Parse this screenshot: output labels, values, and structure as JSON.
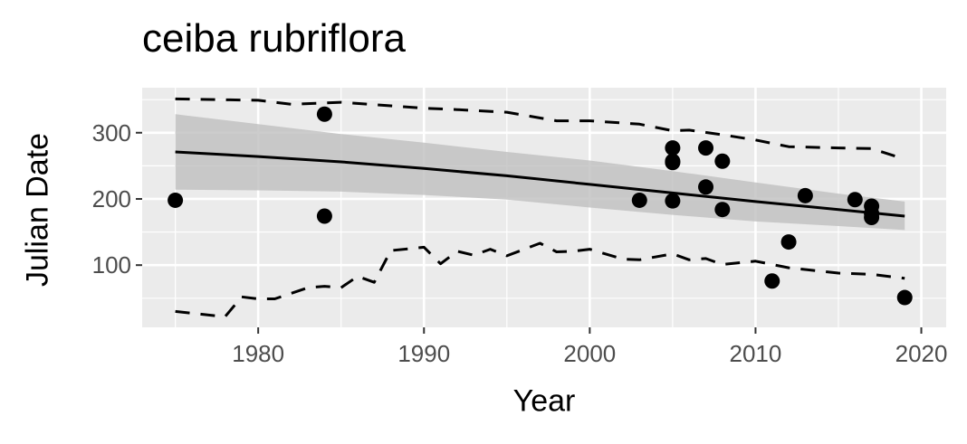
{
  "chart_data": {
    "type": "scatter",
    "title": "ceiba rubriflora",
    "xlabel": "Year",
    "ylabel": "Julian Date",
    "xlim": [
      1973,
      2021.5
    ],
    "ylim": [
      6,
      368
    ],
    "x_ticks": [
      1980,
      1990,
      2000,
      2010,
      2020
    ],
    "y_ticks": [
      100,
      200,
      300
    ],
    "grid": true,
    "legend": "none",
    "colors": {
      "panel": "#ebebeb",
      "grid_major": "#ffffff",
      "points": "#000000",
      "ribbon": "#bfbfbf"
    },
    "points": [
      {
        "x": 1975,
        "y": 198
      },
      {
        "x": 1984,
        "y": 328
      },
      {
        "x": 1984,
        "y": 174
      },
      {
        "x": 2003,
        "y": 198
      },
      {
        "x": 2005,
        "y": 277
      },
      {
        "x": 2005,
        "y": 257
      },
      {
        "x": 2005,
        "y": 255
      },
      {
        "x": 2005,
        "y": 197
      },
      {
        "x": 2007,
        "y": 277
      },
      {
        "x": 2007,
        "y": 218
      },
      {
        "x": 2008,
        "y": 257
      },
      {
        "x": 2008,
        "y": 184
      },
      {
        "x": 2011,
        "y": 76
      },
      {
        "x": 2012,
        "y": 135
      },
      {
        "x": 2013,
        "y": 205
      },
      {
        "x": 2016,
        "y": 199
      },
      {
        "x": 2017,
        "y": 189
      },
      {
        "x": 2017,
        "y": 178
      },
      {
        "x": 2017,
        "y": 172
      },
      {
        "x": 2019,
        "y": 51
      }
    ],
    "fit_line": {
      "x": [
        1975,
        1980,
        1985,
        1990,
        1995,
        2000,
        2005,
        2010,
        2015,
        2019
      ],
      "y": [
        271,
        264,
        256,
        246,
        235,
        222,
        209,
        196,
        184,
        174
      ]
    },
    "confidence_band": {
      "x": [
        1975,
        1980,
        1985,
        1990,
        1995,
        2000,
        2005,
        2010,
        2015,
        2019
      ],
      "upper": [
        328,
        313,
        298,
        285,
        271,
        258,
        242,
        225,
        208,
        196
      ],
      "lower": [
        214,
        213,
        211,
        206,
        199,
        187,
        176,
        166,
        159,
        153
      ]
    },
    "upper_dashed": {
      "x": [
        1975,
        1980,
        1982,
        1985,
        1990,
        1992,
        1995,
        1998,
        2000,
        2003,
        2005,
        2006,
        2008,
        2010,
        2012,
        2015,
        2017,
        2019
      ],
      "y": [
        351,
        349,
        343,
        346,
        337,
        335,
        331,
        318,
        318,
        313,
        303,
        304,
        297,
        289,
        279,
        277,
        276,
        260
      ]
    },
    "lower_dashed": {
      "x": [
        1975,
        1978,
        1979,
        1980,
        1981,
        1983,
        1984,
        1985,
        1986,
        1987,
        1988,
        1990,
        1991,
        1992,
        1993,
        1994,
        1995,
        1997,
        1998,
        1999,
        2000,
        2002,
        2003,
        2005,
        2006,
        2007,
        2008,
        2010,
        2012,
        2015,
        2017,
        2019
      ],
      "y": [
        30,
        22,
        52,
        49,
        49,
        66,
        68,
        66,
        83,
        74,
        122,
        127,
        102,
        121,
        115,
        124,
        114,
        133,
        120,
        121,
        124,
        109,
        108,
        117,
        108,
        110,
        101,
        106,
        96,
        88,
        86,
        80
      ]
    }
  }
}
